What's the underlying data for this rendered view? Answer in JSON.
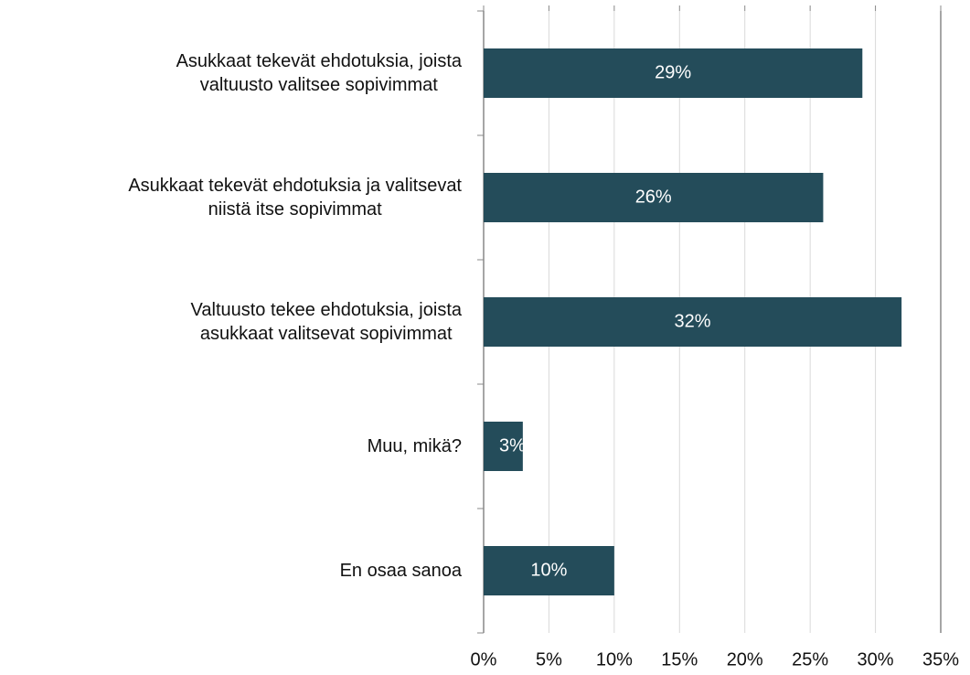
{
  "chart_data": {
    "type": "barh",
    "categories": [
      "Asukkaat tekevät ehdotuksia, joista\nvaltuusto valitsee sopivimmat",
      "Asukkaat tekevät ehdotuksia ja valitsevat\nniistä itse sopivimmat",
      "Valtuusto tekee ehdotuksia, joista\nasukkaat valitsevat sopivimmat",
      "Muu, mikä?",
      "En osaa sanoa"
    ],
    "values": [
      29,
      26,
      32,
      3,
      10
    ],
    "value_labels": [
      "29%",
      "26%",
      "32%",
      "3%",
      "10%"
    ],
    "color": "#244c5a",
    "xlim": [
      0,
      35
    ],
    "xticks": [
      {
        "value": 0,
        "label": "0%"
      },
      {
        "value": 5,
        "label": "5%"
      },
      {
        "value": 10,
        "label": "10%"
      },
      {
        "value": 15,
        "label": "15%"
      },
      {
        "value": 20,
        "label": "20%"
      },
      {
        "value": 25,
        "label": "25%"
      },
      {
        "value": 30,
        "label": "30%"
      },
      {
        "value": 35,
        "label": "35%"
      }
    ],
    "grid": true
  }
}
